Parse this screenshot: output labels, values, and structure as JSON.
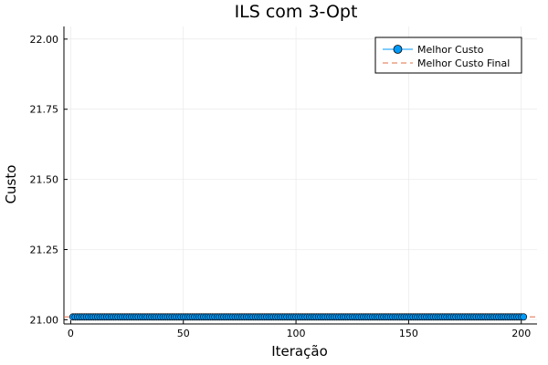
{
  "chart_data": {
    "type": "line",
    "title": "ILS com 3-Opt",
    "xlabel": "Iteração",
    "ylabel": "Custo",
    "xlim": [
      -3,
      207
    ],
    "ylim": [
      20.985,
      22.045
    ],
    "x_ticks": [
      0,
      50,
      100,
      150,
      200
    ],
    "x_tick_labels": [
      "0",
      "50",
      "100",
      "150",
      "200"
    ],
    "y_ticks": [
      21.0,
      21.25,
      21.5,
      21.75,
      22.0
    ],
    "y_tick_labels": [
      "21.00",
      "21.25",
      "21.50",
      "21.75",
      "22.00"
    ],
    "grid": true,
    "legend_position": "top-right",
    "series": [
      {
        "name": "Melhor Custo",
        "kind": "line-markers",
        "color": "#009af9",
        "x_start": 1,
        "x_end": 201,
        "constant_y": 21.01
      },
      {
        "name": "Melhor Custo Final",
        "kind": "hline-dashed",
        "color": "#e26f46",
        "y": 21.01
      }
    ]
  }
}
